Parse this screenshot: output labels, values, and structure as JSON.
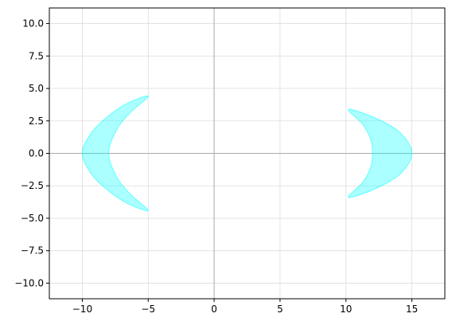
{
  "chart_data": {
    "type": "area",
    "title": "",
    "xlabel": "",
    "ylabel": "",
    "xlim": [
      -12.5,
      17.5
    ],
    "ylim": [
      -11.2,
      11.2
    ],
    "xticks": [
      -10,
      -5,
      0,
      5,
      10,
      15
    ],
    "xtick_labels": [
      "−10",
      "−5",
      "0",
      "5",
      "10",
      "15"
    ],
    "yticks": [
      10.0,
      7.5,
      5.0,
      2.5,
      0.0,
      -2.5,
      -5.0,
      -7.5,
      -10.0
    ],
    "ytick_labels": [
      "10.0",
      "7.5",
      "5.0",
      "2.5",
      "0.0",
      "−2.5",
      "−5.0",
      "−7.5",
      "−10.0"
    ],
    "grid": true,
    "axis_lines": {
      "x": 0,
      "y": 0
    },
    "fill_color": "#00ffff",
    "fill_opacity": 0.33,
    "series": [
      {
        "outer": [
          [
            -5,
            4.4
          ],
          [
            -6.5,
            3.9
          ],
          [
            -8,
            2.9
          ],
          [
            -9.3,
            1.6
          ],
          [
            -10,
            0.0
          ],
          [
            -9.3,
            -1.6
          ],
          [
            -8,
            -2.9
          ],
          [
            -6.5,
            -3.9
          ],
          [
            -5,
            -4.4
          ]
        ],
        "inner": [
          [
            -5,
            -4.4
          ],
          [
            -6.4,
            -3.1
          ],
          [
            -7.4,
            -1.8
          ],
          [
            -8,
            0.0
          ],
          [
            -7.4,
            1.8
          ],
          [
            -6.4,
            3.1
          ],
          [
            -5,
            4.4
          ]
        ]
      },
      {
        "outer": [
          [
            10.2,
            3.4
          ],
          [
            12.5,
            2.6
          ],
          [
            14.2,
            1.5
          ],
          [
            15,
            0.0
          ],
          [
            14.2,
            -1.5
          ],
          [
            12.5,
            -2.6
          ],
          [
            10.2,
            -3.4
          ]
        ],
        "inner": [
          [
            10.2,
            -3.4
          ],
          [
            11.3,
            -2.2
          ],
          [
            11.9,
            -1.0
          ],
          [
            12,
            0.0
          ],
          [
            11.9,
            1.0
          ],
          [
            11.3,
            2.2
          ],
          [
            10.2,
            3.4
          ]
        ]
      }
    ],
    "legend": null
  },
  "colors": {
    "grid": "#dddddd",
    "axis_line": "#aaaaaa",
    "frame": "#000000",
    "background": "#ffffff"
  }
}
